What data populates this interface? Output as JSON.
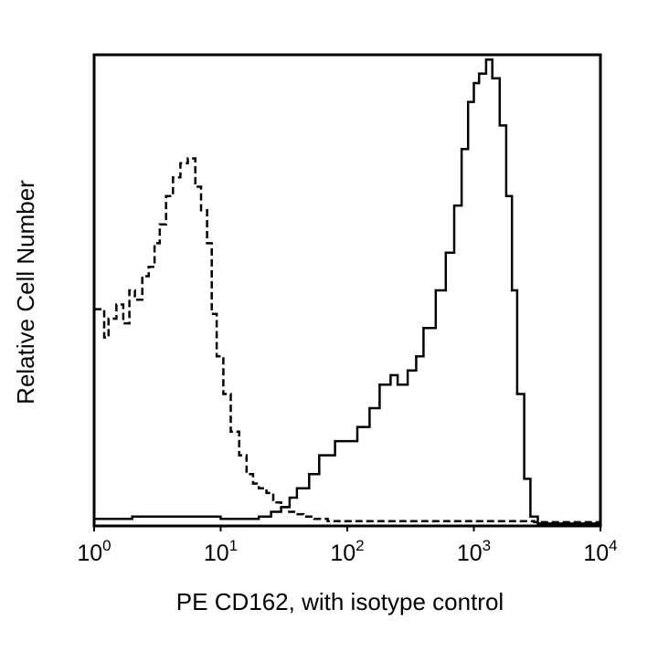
{
  "chart_data": {
    "type": "line",
    "title": "",
    "xlabel": "PE CD162, with isotype control",
    "ylabel": "Relative Cell Number",
    "x_scale": "log",
    "xlim": [
      1,
      10000
    ],
    "ylim": [
      0,
      100
    ],
    "grid": false,
    "legend": "none",
    "x_ticks": [
      {
        "value": 1,
        "base": "10",
        "exp": "0"
      },
      {
        "value": 10,
        "base": "10",
        "exp": "1"
      },
      {
        "value": 100,
        "base": "10",
        "exp": "2"
      },
      {
        "value": 1000,
        "base": "10",
        "exp": "3"
      },
      {
        "value": 10000,
        "base": "10",
        "exp": "4"
      }
    ],
    "series": [
      {
        "style": "dashed",
        "color": "#000000",
        "points": [
          [
            1.0,
            46
          ],
          [
            1.2,
            40
          ],
          [
            1.3,
            44
          ],
          [
            1.5,
            47
          ],
          [
            1.7,
            43
          ],
          [
            1.9,
            50
          ],
          [
            2.1,
            48
          ],
          [
            2.4,
            53
          ],
          [
            2.7,
            55
          ],
          [
            3.0,
            60
          ],
          [
            3.3,
            64
          ],
          [
            3.7,
            70
          ],
          [
            4.2,
            74
          ],
          [
            4.8,
            77
          ],
          [
            5.5,
            78
          ],
          [
            6.3,
            72
          ],
          [
            7.0,
            67
          ],
          [
            7.8,
            60
          ],
          [
            8.5,
            45
          ],
          [
            9.3,
            36
          ],
          [
            10.5,
            28
          ],
          [
            12,
            20
          ],
          [
            14,
            15
          ],
          [
            16,
            11
          ],
          [
            18,
            9
          ],
          [
            20,
            8
          ],
          [
            23,
            7
          ],
          [
            26,
            5
          ],
          [
            30,
            4
          ],
          [
            34,
            3
          ],
          [
            38,
            2.5
          ],
          [
            45,
            2
          ],
          [
            55,
            1.5
          ],
          [
            70,
            1
          ],
          [
            100,
            1
          ],
          [
            200,
            1
          ],
          [
            500,
            1
          ],
          [
            1000,
            1
          ],
          [
            3000,
            0.8
          ],
          [
            10000,
            0.5
          ]
        ]
      },
      {
        "style": "solid",
        "color": "#000000",
        "points": [
          [
            1.0,
            1.5
          ],
          [
            2,
            2
          ],
          [
            5,
            2
          ],
          [
            10,
            1.5
          ],
          [
            20,
            2
          ],
          [
            25,
            3
          ],
          [
            30,
            4
          ],
          [
            35,
            6
          ],
          [
            40,
            8
          ],
          [
            50,
            11
          ],
          [
            60,
            15
          ],
          [
            80,
            18
          ],
          [
            100,
            18
          ],
          [
            120,
            21
          ],
          [
            150,
            25
          ],
          [
            180,
            30
          ],
          [
            220,
            32
          ],
          [
            250,
            30
          ],
          [
            300,
            33
          ],
          [
            350,
            36
          ],
          [
            400,
            42
          ],
          [
            500,
            50
          ],
          [
            600,
            58
          ],
          [
            700,
            68
          ],
          [
            800,
            80
          ],
          [
            900,
            90
          ],
          [
            1000,
            94
          ],
          [
            1100,
            96
          ],
          [
            1250,
            99
          ],
          [
            1400,
            95
          ],
          [
            1600,
            85
          ],
          [
            1800,
            70
          ],
          [
            2000,
            50
          ],
          [
            2200,
            28
          ],
          [
            2500,
            10
          ],
          [
            2800,
            2
          ],
          [
            3200,
            0.5
          ],
          [
            10000,
            0
          ]
        ]
      }
    ]
  }
}
